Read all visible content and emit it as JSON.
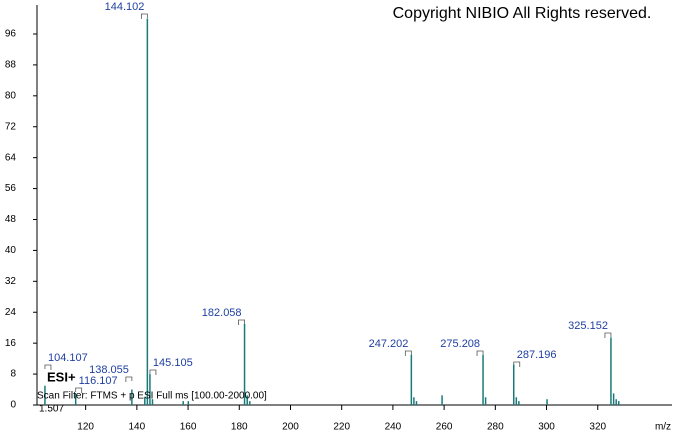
{
  "chart_data": {
    "type": "stick",
    "title": "Copyright NIBIO All Rights reserved.",
    "annotations": {
      "mode": "ESI+",
      "filter": "Scan Filter: FTMS + p ESI Full ms [100.00-2000.00]",
      "time": "1.507"
    },
    "x_label": "m/z",
    "peaks": {
      "x": [
        104.107,
        116.107,
        138.055,
        144.102,
        145.105,
        182.058,
        247.202,
        275.208,
        287.196,
        325.152
      ],
      "values": [
        5,
        3,
        4,
        100,
        8,
        21,
        13,
        13,
        10.5,
        17.5
      ]
    },
    "minor_peaks": {
      "x": [
        143.1,
        146.1,
        158.1,
        160.1,
        183.1,
        184.1,
        248.2,
        249.2,
        259.2,
        276.2,
        288.2,
        289.2,
        300.2,
        326.2,
        327.2,
        328.2
      ],
      "values": [
        2,
        1.5,
        1,
        1,
        2.5,
        1,
        2,
        1,
        2.5,
        2,
        2,
        1,
        1.5,
        3,
        1.5,
        1
      ]
    },
    "color": "#1a7a7a",
    "xlim": [
      101,
      349
    ],
    "xticks": [
      120,
      140,
      160,
      180,
      200,
      220,
      240,
      260,
      280,
      300,
      320
    ],
    "ylim": [
      0,
      103.5
    ],
    "yticks": [
      0,
      8,
      16,
      24,
      32,
      40,
      48,
      56,
      64,
      72,
      80,
      88,
      96
    ]
  }
}
